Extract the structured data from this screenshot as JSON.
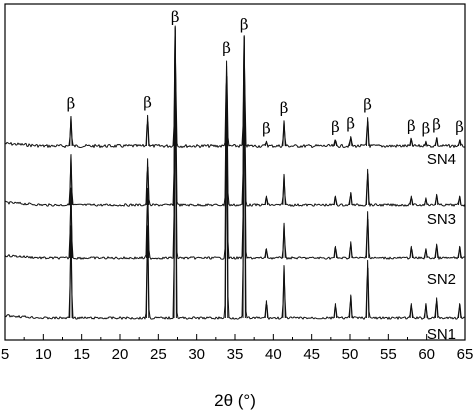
{
  "chart_data": {
    "type": "line",
    "xlabel": "2θ (°)",
    "ylabel": "",
    "xlim": [
      5,
      65
    ],
    "xticks": [
      5,
      10,
      15,
      20,
      25,
      30,
      35,
      40,
      45,
      50,
      55,
      60,
      65
    ],
    "grid": false,
    "peak_symbol": "β",
    "peaks": [
      13.6,
      23.6,
      27.2,
      33.9,
      36.2,
      39.1,
      41.4,
      48.1,
      50.1,
      52.3,
      58.0,
      59.9,
      61.3,
      64.3
    ],
    "labeled_peaks": [
      {
        "x": 13.6,
        "label": "β"
      },
      {
        "x": 23.6,
        "label": "β"
      },
      {
        "x": 27.2,
        "label": "β"
      },
      {
        "x": 33.9,
        "label": "β"
      },
      {
        "x": 36.2,
        "label": "β"
      },
      {
        "x": 39.1,
        "label": "β"
      },
      {
        "x": 41.4,
        "label": "β"
      },
      {
        "x": 48.1,
        "label": "β"
      },
      {
        "x": 50.1,
        "label": "β"
      },
      {
        "x": 52.3,
        "label": "β"
      },
      {
        "x": 58.0,
        "label": "β"
      },
      {
        "x": 59.9,
        "label": "β"
      },
      {
        "x": 61.3,
        "label": "β"
      },
      {
        "x": 64.3,
        "label": "β"
      }
    ],
    "series": [
      {
        "name": "SN4",
        "relative_intensities": [
          0.25,
          0.26,
          1.0,
          0.72,
          0.92,
          0.04,
          0.21,
          0.05,
          0.08,
          0.24,
          0.06,
          0.04,
          0.07,
          0.05
        ]
      },
      {
        "name": "SN3",
        "relative_intensities": [
          0.28,
          0.26,
          1.0,
          0.78,
          0.95,
          0.05,
          0.17,
          0.05,
          0.07,
          0.2,
          0.05,
          0.04,
          0.06,
          0.05
        ]
      },
      {
        "name": "SN2",
        "relative_intensities": [
          0.3,
          0.3,
          1.0,
          0.8,
          0.95,
          0.04,
          0.15,
          0.05,
          0.07,
          0.2,
          0.05,
          0.04,
          0.06,
          0.05
        ]
      },
      {
        "name": "SN1",
        "relative_intensities": [
          0.32,
          0.32,
          1.0,
          0.82,
          0.98,
          0.06,
          0.18,
          0.05,
          0.08,
          0.2,
          0.05,
          0.05,
          0.07,
          0.05
        ]
      }
    ]
  }
}
